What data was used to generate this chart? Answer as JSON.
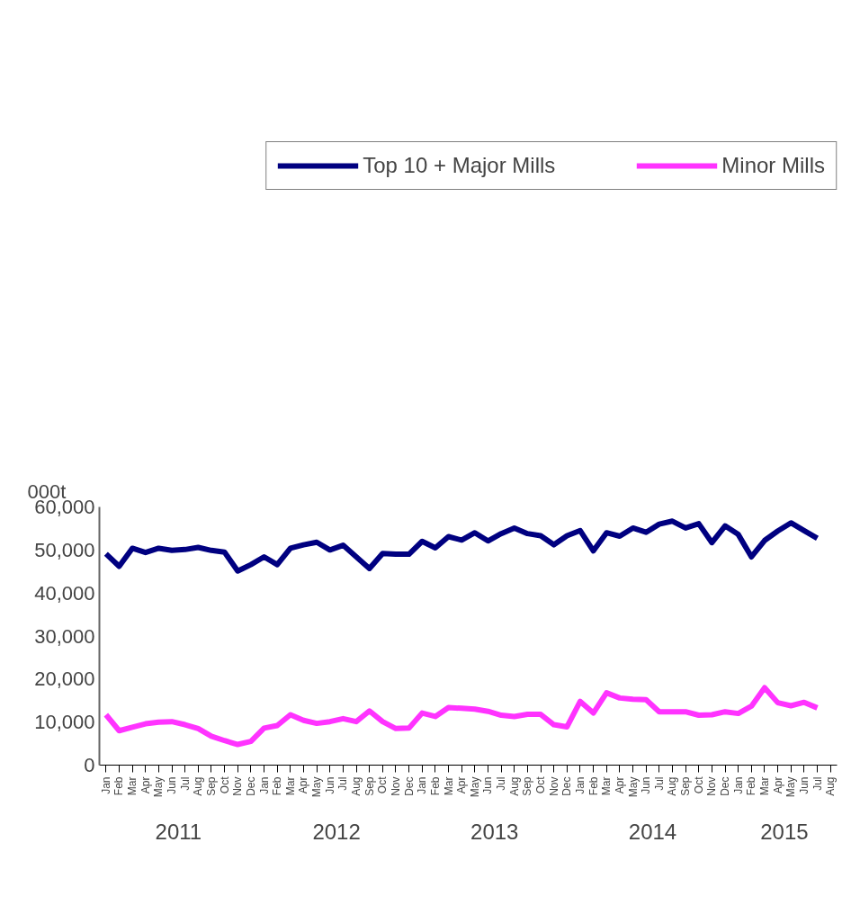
{
  "chart_data": {
    "type": "line",
    "ylabel": "000t",
    "categories": [
      "Jan",
      "Feb",
      "Mar",
      "Apr",
      "May",
      "Jun",
      "Jul",
      "Aug",
      "Sep",
      "Oct",
      "Nov",
      "Dec",
      "Jan",
      "Feb",
      "Mar",
      "Apr",
      "May",
      "Jun",
      "Jul",
      "Aug",
      "Sep",
      "Oct",
      "Nov",
      "Dec",
      "Jan",
      "Feb",
      "Mar",
      "Apr",
      "May",
      "Jun",
      "Jul",
      "Aug",
      "Sep",
      "Oct",
      "Nov",
      "Dec",
      "Jan",
      "Feb",
      "Mar",
      "Apr",
      "May",
      "Jun",
      "Jul",
      "Aug",
      "Sep",
      "Oct",
      "Nov",
      "Dec",
      "Jan",
      "Feb",
      "Mar",
      "Apr",
      "May",
      "Jun",
      "Jul",
      "Aug"
    ],
    "series": [
      {
        "name": "Top 10 + Major Mills",
        "color": "#000080",
        "values": [
          49100,
          46200,
          50400,
          49400,
          50400,
          49900,
          50100,
          50600,
          49900,
          49500,
          45100,
          46600,
          48400,
          46600,
          50400,
          51200,
          51800,
          50000,
          51100,
          48400,
          45700,
          49200,
          49000,
          49000,
          52000,
          50500,
          53100,
          52300,
          54000,
          52100,
          53800,
          55100,
          53800,
          53300,
          51200,
          53300,
          54500,
          49800,
          54000,
          53200,
          55100,
          54100,
          56000,
          56700,
          55100,
          56100,
          51700,
          55600,
          53600,
          48400,
          52200,
          54400,
          56300,
          54500,
          52700,
          null
        ]
      },
      {
        "name": "Minor Mills",
        "color": "#ff33ff",
        "values": [
          11700,
          8000,
          8800,
          9600,
          10000,
          10100,
          9400,
          8500,
          6700,
          5700,
          4800,
          5500,
          8600,
          9200,
          11700,
          10400,
          9700,
          10100,
          10800,
          10100,
          12600,
          10100,
          8500,
          8600,
          12100,
          11300,
          13400,
          13200,
          13000,
          12500,
          11600,
          11300,
          11800,
          11800,
          9400,
          8900,
          14800,
          12100,
          16800,
          15600,
          15300,
          15200,
          12400,
          12400,
          12400,
          11600,
          11700,
          12400,
          12000,
          13700,
          18000,
          14500,
          13800,
          14600,
          13300,
          null
        ]
      }
    ],
    "ylim": [
      0,
      60000
    ],
    "yticks": [
      0,
      {
        "value": 10000,
        "label": "10,000"
      },
      {
        "value": 20000,
        "label": "20,000"
      },
      {
        "value": 30000,
        "label": "30,000"
      },
      {
        "value": 40000,
        "label": "40,000"
      },
      {
        "value": 50000,
        "label": "50,000"
      },
      {
        "value": 60000,
        "label": "60,000"
      }
    ],
    "grid": false,
    "legend": "top",
    "marker": "none",
    "line_style": "solid",
    "annotations": [
      "2011",
      "2012",
      "2013",
      "2014",
      "2015"
    ]
  }
}
